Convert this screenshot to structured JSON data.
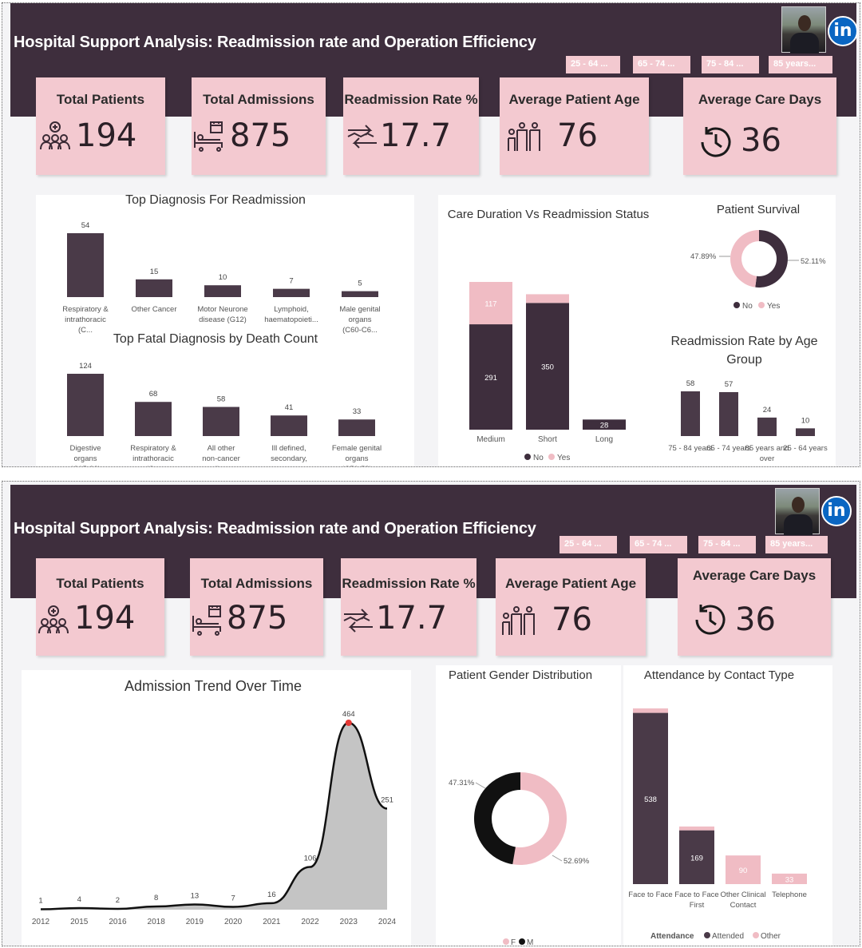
{
  "pages": [
    {
      "header": {
        "title": "Hospital Support Analysis: Readmission rate and Operation Efficiency",
        "linkedin_icon": "in",
        "slicers": [
          "25 - 64 ...",
          "65 - 74 ...",
          "75 - 84 ...",
          "85 years..."
        ]
      },
      "kpis": [
        {
          "label": "Total Patients",
          "value": "194",
          "icon": "patients-group-icon"
        },
        {
          "label": "Total Admissions",
          "value": "875",
          "icon": "hospital-bed-icon"
        },
        {
          "label": "Readmission Rate %",
          "value": "17.7",
          "icon": "exchange-arrows-icon"
        },
        {
          "label": "Average Patient Age",
          "value": "76",
          "icon": "family-icon"
        },
        {
          "label": "Average Care Days",
          "value": "36",
          "icon": "clock-history-icon"
        }
      ]
    },
    {
      "header": {
        "title": "Hospital Support Analysis: Readmission rate and Operation Efficiency",
        "linkedin_icon": "in",
        "slicers": [
          "25 - 64 ...",
          "65 - 74 ...",
          "75 - 84 ...",
          "85 years..."
        ]
      },
      "kpis": [
        {
          "label": "Total Patients",
          "value": "194",
          "icon": "patients-group-icon"
        },
        {
          "label": "Total Admissions",
          "value": "875",
          "icon": "hospital-bed-icon"
        },
        {
          "label": "Readmission Rate %",
          "value": "17.7",
          "icon": "exchange-arrows-icon"
        },
        {
          "label": "Average Patient Age",
          "value": "76",
          "icon": "family-icon"
        },
        {
          "label": "Average Care Days",
          "value": "36",
          "icon": "clock-history-icon"
        }
      ]
    }
  ],
  "colors": {
    "header": "#3e2e3d",
    "pink": "#f3c9d0",
    "dark_bar": "#4a3a48",
    "light_bar": "#f0bcc4",
    "donut_black": "#111111"
  },
  "chart_data": [
    {
      "id": "top-diagnosis-readmission",
      "type": "bar",
      "title": "Top Diagnosis For Readmission",
      "categories": [
        "Respiratory & intrathoracic (C...",
        "Other Cancer",
        "Motor Neurone disease (G12)",
        "Lymphoid, haematopoieti...",
        "Male genital organs (C60-C6..."
      ],
      "values": [
        54,
        15,
        10,
        7,
        5
      ]
    },
    {
      "id": "top-fatal-diagnosis",
      "type": "bar",
      "title": "Top Fatal Diagnosis by Death Count",
      "categories": [
        "Digestive organs (C15-26)",
        "Respiratory & intrathoracic (C...",
        "All other non-cancer dia...",
        "Ill defined, secondary, uns...",
        "Female genital organs (C51-58)"
      ],
      "values": [
        124,
        68,
        58,
        41,
        33
      ]
    },
    {
      "id": "care-duration-vs-readmission",
      "type": "bar",
      "stacked": true,
      "title": "Care Duration Vs Readmission Status",
      "categories": [
        "Medium",
        "Short",
        "Long"
      ],
      "series": [
        {
          "name": "No",
          "values": [
            291,
            350,
            28
          ]
        },
        {
          "name": "Yes",
          "values": [
            117,
            24,
            0
          ]
        }
      ],
      "legend": [
        "No",
        "Yes"
      ],
      "legend_position": "bottom"
    },
    {
      "id": "patient-survival",
      "type": "pie",
      "donut": true,
      "title": "Patient Survival",
      "labels": [
        "No",
        "Yes"
      ],
      "values": [
        52.11,
        47.89
      ],
      "value_labels": [
        "52.11%",
        "47.89%"
      ],
      "legend_position": "bottom"
    },
    {
      "id": "readmission-by-age",
      "type": "bar",
      "title": "Readmission Rate by Age Group",
      "categories": [
        "75 - 84 years",
        "65 - 74 years",
        "85 years and over",
        "25 - 64 years"
      ],
      "values": [
        58,
        57,
        24,
        10
      ]
    },
    {
      "id": "admission-trend",
      "type": "area",
      "title": "Admission Trend Over Time",
      "x": [
        "2012",
        "2015",
        "2016",
        "2018",
        "2019",
        "2020",
        "2021",
        "2022",
        "2023",
        "2024"
      ],
      "values": [
        1,
        4,
        2,
        8,
        13,
        7,
        16,
        106,
        464,
        251
      ],
      "value_labels": [
        "1",
        "4",
        "2",
        "8",
        "13",
        "7",
        "16",
        "106",
        "464",
        "251"
      ],
      "highlight": "2023"
    },
    {
      "id": "gender-distribution",
      "type": "pie",
      "donut": true,
      "title": "Patient Gender Distribution",
      "labels": [
        "F",
        "M"
      ],
      "values": [
        52.69,
        47.31
      ],
      "value_labels": [
        "52.69%",
        "47.31%"
      ],
      "legend_position": "bottom"
    },
    {
      "id": "attendance-contact-type",
      "type": "bar",
      "stacked": true,
      "title": "Attendance by Contact Type",
      "categories": [
        "Face to Face",
        "Face to Face First",
        "Other Clinical Contact",
        "Telephone"
      ],
      "series": [
        {
          "name": "Attended",
          "values": [
            538,
            169,
            0,
            0
          ]
        },
        {
          "name": "Other",
          "values": [
            14,
            12,
            90,
            33
          ]
        }
      ],
      "value_labels": [
        [
          "538",
          "169",
          "",
          ""
        ],
        [
          "",
          "",
          "90",
          "33"
        ]
      ],
      "legend_title": "Attendance",
      "legend": [
        "Attended",
        "Other"
      ],
      "legend_position": "bottom"
    }
  ]
}
